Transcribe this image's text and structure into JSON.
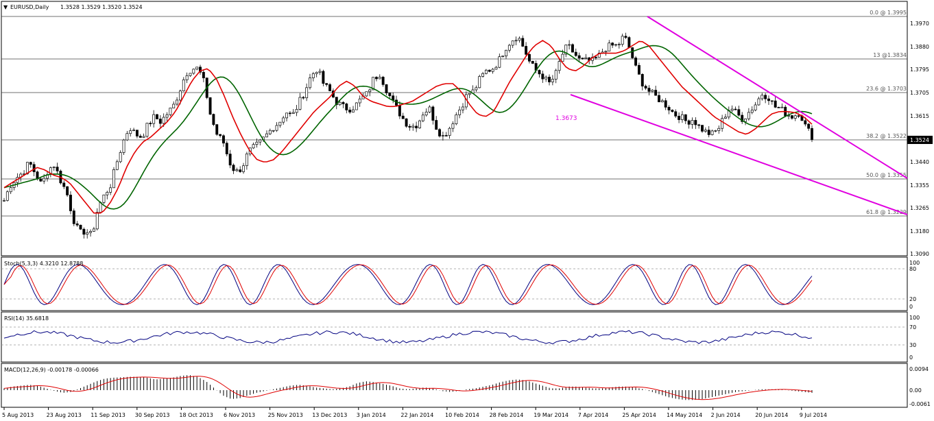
{
  "header": {
    "symbol": "EURUSD,Daily",
    "ohlc": "1.3528 1.3529 1.3520 1.3524"
  },
  "colors": {
    "price": "#000000",
    "ma_fast": "#e00000",
    "ma_slow": "#006400",
    "channel": "#e000e0",
    "stoch_main": "#000080",
    "stoch_signal": "#e00000",
    "rsi": "#000080",
    "macd_signal": "#e00000",
    "grid": "#404040"
  },
  "price_axis": {
    "ticks": [
      "1.3970",
      "1.3880",
      "1.3795",
      "1.3705",
      "1.3615",
      "1.3524",
      "1.3440",
      "1.3355",
      "1.3265",
      "1.3180",
      "1.3090"
    ],
    "current": "1.3524"
  },
  "fib_labels": [
    "0.0 @ 1.3995",
    "13 @1.3834",
    "23.6 @ 1.3703",
    "38.2 @ 1.3522",
    "50.0 @ 1.3355",
    "61.8 @ 1.3229"
  ],
  "annotation": "1.3673",
  "stoch": {
    "title": "Stoch(5,3,3) 4.3210 12.8788",
    "levels": [
      "100",
      "80",
      "20",
      "0"
    ]
  },
  "rsi": {
    "title": "RSI(14) 35.6818",
    "levels": [
      "100",
      "70",
      "30",
      "0"
    ]
  },
  "macd": {
    "title": "MACD(12,26,9) -0.00178 -0.00066",
    "levels": [
      "0.0094",
      "0.00",
      "-0.0061"
    ]
  },
  "x_axis": [
    "5 Aug 2013",
    "23 Aug 2013",
    "11 Sep 2013",
    "30 Sep 2013",
    "18 Oct 2013",
    "6 Nov 2013",
    "25 Nov 2013",
    "13 Dec 2013",
    "3 Jan 2014",
    "22 Jan 2014",
    "10 Feb 2014",
    "28 Feb 2014",
    "19 Mar 2014",
    "7 Apr 2014",
    "25 Apr 2014",
    "14 May 2014",
    "2 Jun 2014",
    "20 Jun 2014",
    "9 Jul 2014"
  ],
  "chart_data": {
    "type": "candlestick",
    "title": "EURUSD,Daily",
    "ylim": [
      1.3065,
      1.3995
    ],
    "fib_levels": [
      {
        "ratio": "0.0",
        "price": 1.3995
      },
      {
        "ratio": "13",
        "price": 1.3834
      },
      {
        "ratio": "23.6",
        "price": 1.3703
      },
      {
        "ratio": "38.2",
        "price": 1.3522
      },
      {
        "ratio": "50.0",
        "price": 1.3355
      },
      {
        "ratio": "61.8",
        "price": 1.3229
      }
    ],
    "close_approx": [
      1.327,
      1.333,
      1.336,
      1.338,
      1.342,
      1.3375,
      1.333,
      1.339,
      1.341,
      1.335,
      1.33,
      1.32,
      1.314,
      1.315,
      1.313,
      1.324,
      1.329,
      1.333,
      1.342,
      1.35,
      1.356,
      1.353,
      1.352,
      1.357,
      1.36,
      1.358,
      1.361,
      1.364,
      1.37,
      1.377,
      1.379,
      1.379,
      1.373,
      1.36,
      1.353,
      1.35,
      1.342,
      1.338,
      1.34,
      1.346,
      1.348,
      1.35,
      1.353,
      1.356,
      1.358,
      1.362,
      1.36,
      1.365,
      1.37,
      1.376,
      1.379,
      1.373,
      1.37,
      1.366,
      1.364,
      1.363,
      1.364,
      1.367,
      1.369,
      1.375,
      1.377,
      1.371,
      1.366,
      1.362,
      1.358,
      1.356,
      1.357,
      1.362,
      1.363,
      1.356,
      1.352,
      1.355,
      1.36,
      1.364,
      1.369,
      1.37,
      1.375,
      1.378,
      1.379,
      1.382,
      1.387,
      1.39,
      1.392,
      1.387,
      1.381,
      1.378,
      1.376,
      1.373,
      1.376,
      1.384,
      1.388,
      1.385,
      1.382,
      1.382,
      1.382,
      1.384,
      1.387,
      1.388,
      1.388,
      1.392,
      1.386,
      1.378,
      1.373,
      1.37,
      1.368,
      1.366,
      1.364,
      1.361,
      1.36,
      1.358,
      1.359,
      1.356,
      1.354,
      1.353,
      1.355,
      1.36,
      1.364,
      1.361,
      1.359,
      1.362,
      1.365,
      1.369,
      1.368,
      1.364,
      1.363,
      1.361,
      1.36,
      1.362,
      1.356,
      1.3524
    ],
    "sma_fast_approx": [
      1.332,
      1.334,
      1.336,
      1.338,
      1.34,
      1.339,
      1.337,
      1.336,
      1.334,
      1.33,
      1.326,
      1.322,
      1.322,
      1.326,
      1.332,
      1.34,
      1.346,
      1.35,
      1.352,
      1.355,
      1.358,
      1.362,
      1.368,
      1.374,
      1.378,
      1.379,
      1.375,
      1.368,
      1.36,
      1.353,
      1.347,
      1.343,
      1.342,
      1.343,
      1.346,
      1.35,
      1.354,
      1.358,
      1.362,
      1.365,
      1.368,
      1.372,
      1.374,
      1.372,
      1.368,
      1.366,
      1.365,
      1.364,
      1.364,
      1.365,
      1.366,
      1.368,
      1.37,
      1.372,
      1.373,
      1.373,
      1.37,
      1.365,
      1.361,
      1.36,
      1.362,
      1.368,
      1.374,
      1.379,
      1.384,
      1.388,
      1.39,
      1.388,
      1.383,
      1.379,
      1.378,
      1.38,
      1.383,
      1.385,
      1.385,
      1.385,
      1.386,
      1.388,
      1.39,
      1.388,
      1.384,
      1.38,
      1.376,
      1.372,
      1.369,
      1.366,
      1.363,
      1.36,
      1.358,
      1.356,
      1.354,
      1.353,
      1.355,
      1.358,
      1.361,
      1.362,
      1.362,
      1.3615,
      1.36,
      1.357
    ],
    "macd_hist_approx": [
      0.001,
      0.002,
      0.0025,
      0.003,
      0.0025,
      0.001,
      -0.0005,
      -0.0015,
      -0.001,
      0.001,
      0.003,
      0.005,
      0.0065,
      0.007,
      0.0072,
      0.0075,
      0.0075,
      0.007,
      0.006,
      0.0065,
      0.007,
      0.008,
      0.0085,
      0.0075,
      0.005,
      0.001,
      -0.003,
      -0.005,
      -0.0045,
      -0.003,
      -0.0015,
      -0.0005,
      0.0005,
      0.0015,
      0.0025,
      0.003,
      0.0025,
      0.0015,
      0.001,
      0.0005,
      0.001,
      0.002,
      0.004,
      0.005,
      0.0045,
      0.0035,
      0.0025,
      0.001,
      0.0005,
      0.001,
      0.0015,
      0.001,
      -0.0005,
      -0.001,
      -0.0005,
      0.0005,
      0.001,
      0.002,
      0.003,
      0.0045,
      0.0055,
      0.006,
      0.0055,
      0.004,
      0.0025,
      0.001,
      0.001,
      0.002,
      0.002,
      0.0015,
      0.001,
      0.001,
      0.0015,
      0.002,
      0.002,
      0.0015,
      0.0005,
      -0.001,
      -0.0025,
      -0.004,
      -0.005,
      -0.0055,
      -0.0055,
      -0.005,
      -0.004,
      -0.003,
      -0.002,
      -0.001,
      -0.0005,
      0.0,
      0.0005,
      0.0005,
      0.0005,
      0.0,
      -0.0005,
      -0.001,
      -0.0015
    ]
  }
}
